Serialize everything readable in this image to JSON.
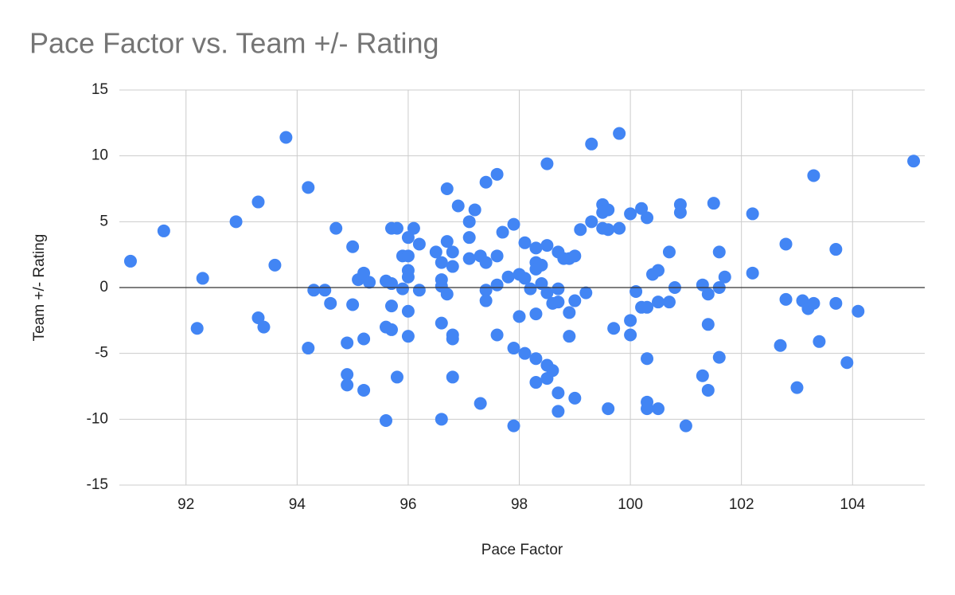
{
  "chart_data": {
    "type": "scatter",
    "title": "Pace Factor vs. Team +/- Rating",
    "x_label": "Pace Factor",
    "y_label": "Team +/- Rating",
    "color": "#4285f4",
    "grid": true,
    "xlim": [
      90.8,
      105.3
    ],
    "xticks": [
      92,
      94,
      96,
      98,
      100,
      102,
      104
    ],
    "ylim": [
      -15,
      15
    ],
    "yticks": [
      -15,
      -10,
      -5,
      0,
      5,
      10,
      15
    ],
    "x": [
      91.0,
      91.6,
      92.3,
      92.2,
      92.9,
      93.3,
      93.3,
      93.4,
      93.6,
      93.8,
      94.2,
      94.2,
      94.3,
      94.5,
      94.6,
      94.7,
      94.9,
      94.9,
      94.9,
      95.0,
      95.0,
      95.1,
      95.2,
      95.2,
      95.2,
      95.3,
      95.6,
      95.6,
      95.6,
      95.7,
      95.7,
      95.7,
      95.7,
      95.8,
      95.8,
      95.9,
      95.9,
      96.0,
      96.0,
      96.0,
      96.0,
      96.0,
      96.0,
      96.1,
      96.2,
      96.2,
      96.5,
      96.6,
      96.6,
      96.6,
      96.6,
      96.6,
      96.7,
      96.7,
      96.7,
      96.8,
      96.8,
      96.8,
      96.8,
      96.8,
      96.9,
      97.1,
      97.1,
      97.1,
      97.2,
      97.3,
      97.3,
      97.4,
      97.4,
      97.4,
      97.4,
      97.6,
      97.6,
      97.6,
      97.6,
      97.7,
      97.8,
      97.9,
      97.9,
      97.9,
      98.0,
      98.0,
      98.1,
      98.1,
      98.1,
      98.2,
      98.3,
      98.3,
      98.3,
      98.3,
      98.3,
      98.3,
      98.4,
      98.4,
      98.5,
      98.5,
      98.5,
      98.5,
      98.5,
      98.6,
      98.6,
      98.7,
      98.7,
      98.7,
      98.7,
      98.7,
      98.8,
      98.9,
      98.9,
      98.9,
      99.0,
      99.0,
      99.0,
      99.1,
      99.2,
      99.3,
      99.3,
      99.5,
      99.5,
      99.5,
      99.6,
      99.6,
      99.6,
      99.7,
      99.8,
      99.8,
      100.0,
      100.0,
      100.0,
      100.1,
      100.2,
      100.2,
      100.3,
      100.3,
      100.3,
      100.3,
      100.3,
      100.4,
      100.5,
      100.5,
      100.5,
      100.7,
      100.7,
      100.8,
      100.9,
      100.9,
      101.3,
      101.3,
      101.4,
      101.4,
      101.4,
      101.0,
      101.5,
      101.6,
      101.6,
      101.6,
      101.7,
      102.2,
      102.2,
      102.7,
      102.8,
      102.8,
      103.0,
      103.1,
      103.2,
      103.3,
      103.3,
      103.4,
      103.7,
      103.7,
      103.9,
      104.1,
      105.1
    ],
    "values": [
      2.0,
      4.3,
      0.7,
      -3.1,
      5.0,
      6.5,
      -2.3,
      -3.0,
      1.7,
      11.4,
      7.6,
      -4.6,
      -0.2,
      -0.2,
      -1.2,
      4.5,
      -4.2,
      -6.6,
      -7.4,
      3.1,
      -1.3,
      0.6,
      1.1,
      -3.9,
      -7.8,
      0.4,
      0.5,
      -3.0,
      -10.1,
      4.5,
      0.3,
      -1.4,
      -3.2,
      4.5,
      -6.8,
      2.4,
      -0.1,
      3.8,
      2.4,
      1.3,
      0.8,
      -1.8,
      -3.7,
      4.5,
      3.3,
      -0.2,
      2.7,
      1.9,
      0.6,
      0.1,
      -2.7,
      -10.0,
      7.5,
      3.5,
      -0.5,
      2.7,
      1.6,
      -3.6,
      -3.9,
      -6.8,
      6.2,
      5.0,
      3.8,
      2.2,
      5.9,
      2.4,
      -8.8,
      1.9,
      8.0,
      -0.2,
      -1.0,
      8.6,
      2.4,
      0.2,
      -3.6,
      4.2,
      0.8,
      4.8,
      -4.6,
      -10.5,
      1.0,
      -2.2,
      3.4,
      0.7,
      -5.0,
      -0.1,
      3.0,
      1.9,
      1.4,
      -2.0,
      -5.4,
      -7.2,
      1.7,
      0.3,
      9.4,
      3.2,
      -0.4,
      -5.9,
      -6.9,
      -1.2,
      -6.3,
      2.7,
      -0.1,
      -1.1,
      -8.0,
      -9.4,
      2.2,
      2.2,
      -1.9,
      -3.7,
      2.4,
      -1.0,
      -8.4,
      4.4,
      -0.4,
      5.0,
      10.9,
      6.3,
      5.7,
      4.5,
      5.9,
      4.4,
      -9.2,
      -3.1,
      4.5,
      11.7,
      5.6,
      -2.5,
      -3.6,
      -0.3,
      6.0,
      -1.5,
      5.3,
      -1.5,
      -5.4,
      -8.7,
      -9.2,
      1.0,
      1.3,
      -1.1,
      -9.2,
      2.7,
      -1.1,
      0.0,
      6.3,
      5.7,
      0.2,
      -6.7,
      -0.5,
      -2.8,
      -7.8,
      -10.5,
      6.4,
      0.0,
      2.7,
      -5.3,
      0.8,
      5.6,
      1.1,
      -4.4,
      3.3,
      -0.9,
      -7.6,
      -1.0,
      -1.6,
      8.5,
      -1.2,
      -4.1,
      2.9,
      -1.2,
      -5.7,
      -1.8,
      9.6
    ]
  }
}
